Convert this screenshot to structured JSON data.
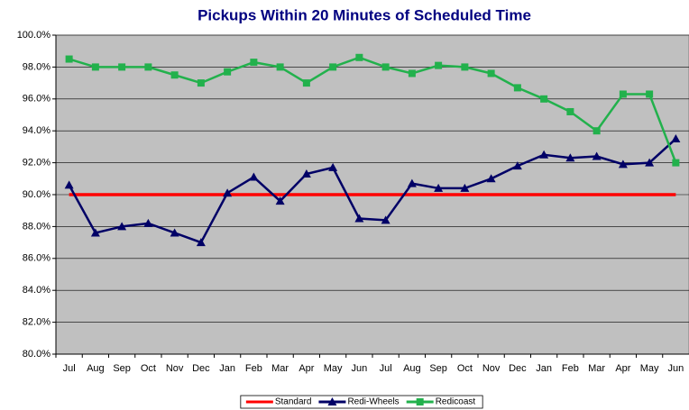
{
  "chart_data": {
    "type": "line",
    "title": "Pickups Within 20 Minutes of Scheduled Time",
    "categories": [
      "Jul",
      "Aug",
      "Sep",
      "Oct",
      "Nov",
      "Dec",
      "Jan",
      "Feb",
      "Mar",
      "Apr",
      "May",
      "Jun",
      "Jul",
      "Aug",
      "Sep",
      "Oct",
      "Nov",
      "Dec",
      "Jan",
      "Feb",
      "Mar",
      "Apr",
      "May",
      "Jun"
    ],
    "series": [
      {
        "name": "Standard",
        "color": "#ff0000",
        "marker": "none",
        "values": [
          90,
          90,
          90,
          90,
          90,
          90,
          90,
          90,
          90,
          90,
          90,
          90,
          90,
          90,
          90,
          90,
          90,
          90,
          90,
          90,
          90,
          90,
          90,
          90
        ]
      },
      {
        "name": "Redi-Wheels",
        "color": "#000066",
        "marker": "triangle",
        "values": [
          90.6,
          87.6,
          88.0,
          88.2,
          87.6,
          87.0,
          90.1,
          91.1,
          89.6,
          91.3,
          91.7,
          88.5,
          88.4,
          90.7,
          90.4,
          90.4,
          91.0,
          91.8,
          92.5,
          92.3,
          92.4,
          91.9,
          92.0,
          93.5
        ]
      },
      {
        "name": "Redicoast",
        "color": "#22b14c",
        "marker": "square",
        "values": [
          98.5,
          98.0,
          98.0,
          98.0,
          97.5,
          97.0,
          97.7,
          98.3,
          98.0,
          97.0,
          98.0,
          98.6,
          98.0,
          97.6,
          98.1,
          98.0,
          97.6,
          96.7,
          96.0,
          95.2,
          94.0,
          96.3,
          96.3,
          92.0
        ]
      }
    ],
    "ylim": [
      80,
      100
    ],
    "yticks": [
      {
        "value": 80,
        "label": "80.0%"
      },
      {
        "value": 82,
        "label": "82.0%"
      },
      {
        "value": 84,
        "label": "84.0%"
      },
      {
        "value": 86,
        "label": "86.0%"
      },
      {
        "value": 88,
        "label": "88.0%"
      },
      {
        "value": 90,
        "label": "90.0%"
      },
      {
        "value": 92,
        "label": "92.0%"
      },
      {
        "value": 94,
        "label": "94.0%"
      },
      {
        "value": 96,
        "label": "96.0%"
      },
      {
        "value": 98,
        "label": "98.0%"
      },
      {
        "value": 100,
        "label": "100.0%"
      }
    ],
    "grid": true,
    "legend": "bottom",
    "plot_background": "#c0c0c0"
  }
}
